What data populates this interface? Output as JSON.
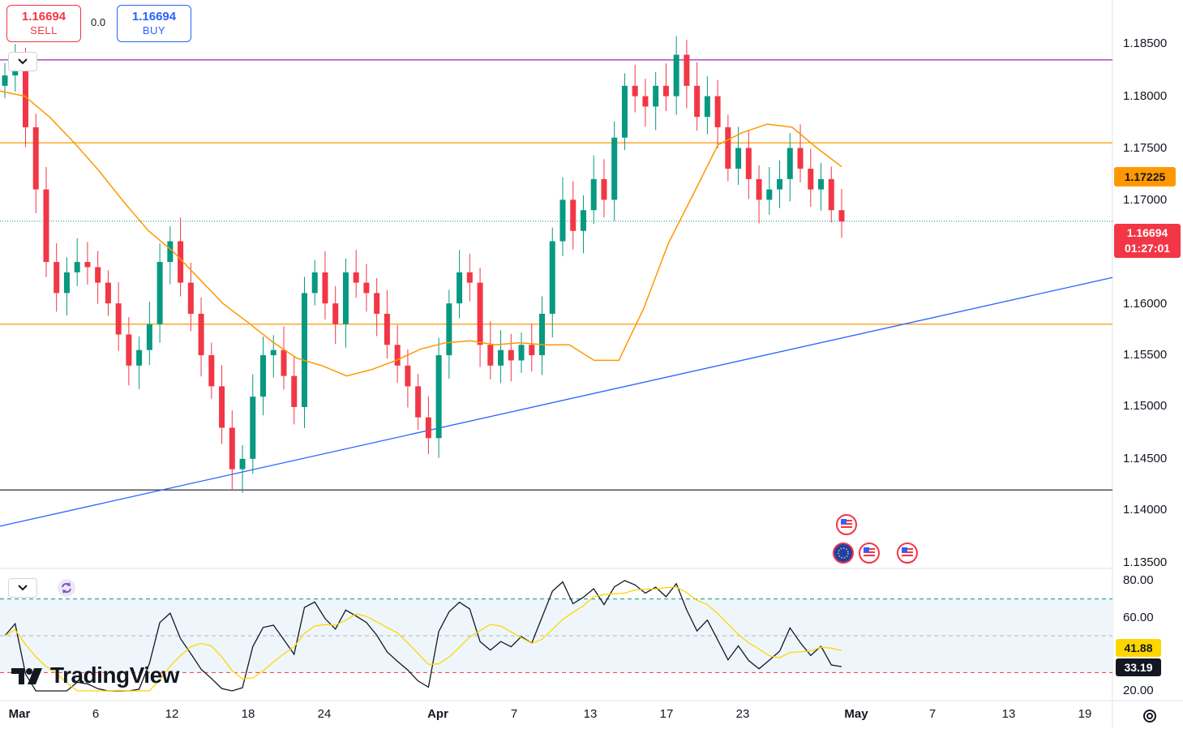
{
  "trade_panel": {
    "sell_price": "1.16694",
    "sell_label": "SELL",
    "spread": "0.0",
    "buy_price": "1.16694",
    "buy_label": "BUY"
  },
  "price_axis": {
    "ticks": [
      "1.18500",
      "1.18000",
      "1.17500",
      "1.17000",
      "1.16000",
      "1.15500",
      "1.15000",
      "1.14500",
      "1.14000",
      "1.13500"
    ],
    "ma_badge": "1.17225",
    "current_price_badge": "1.16694",
    "countdown_badge": "01:27:01"
  },
  "rsi_axis": {
    "ticks": [
      "80.00",
      "60.00",
      "20.00"
    ],
    "ma_badge": "41.88",
    "rsi_badge": "33.19"
  },
  "time_axis": {
    "ticks": [
      "Mar",
      "6",
      "12",
      "18",
      "24",
      "Apr",
      "7",
      "13",
      "17",
      "23",
      "May",
      "7",
      "13",
      "19"
    ]
  },
  "branding": {
    "logo_text": "TradingView"
  },
  "colors": {
    "up": "#089981",
    "down": "#f23645",
    "ma": "#ff9800",
    "trendline": "#2962ff",
    "resistance_top": "#9c27b0",
    "rsi_ma": "#ffd600",
    "rsi_band": "#eef6fb"
  },
  "chart_data": {
    "type": "candlestick",
    "symbol_note": "",
    "price_range": [
      1.1335,
      1.1875
    ],
    "horizontal_levels": [
      1.1825,
      1.1745,
      1.157,
      1.141
    ],
    "current_price": 1.16694,
    "ma_last": 1.17225,
    "trendline": {
      "from": {
        "x": "Feb 28",
        "y": 1.1375
      },
      "to": {
        "x": "May 19",
        "y": 1.1615
      }
    },
    "ma_path": [
      [
        1.1795,
        1.179,
        1.177,
        1.1745,
        1.1718,
        1.1688,
        1.166,
        1.164,
        1.1615,
        1.159,
        1.1572,
        1.1553,
        1.1537,
        1.153,
        1.152,
        1.1526,
        1.1535,
        1.1546,
        1.1552,
        1.1554,
        1.155,
        1.1552,
        1.155,
        1.155,
        1.1535,
        1.1535,
        1.1585,
        1.1648,
        1.1695,
        1.1743,
        1.1755,
        1.1763,
        1.176,
        1.174,
        1.1722
      ]
    ],
    "closes": [
      1.181,
      1.182,
      1.176,
      1.17,
      1.163,
      1.16,
      1.162,
      1.163,
      1.1625,
      1.161,
      1.159,
      1.156,
      1.153,
      1.1545,
      1.157,
      1.163,
      1.165,
      1.161,
      1.158,
      1.154,
      1.151,
      1.147,
      1.143,
      1.144,
      1.15,
      1.154,
      1.1545,
      1.152,
      1.149,
      1.16,
      1.162,
      1.159,
      1.157,
      1.162,
      1.161,
      1.16,
      1.158,
      1.155,
      1.153,
      1.151,
      1.148,
      1.146,
      1.154,
      1.159,
      1.162,
      1.161,
      1.155,
      1.153,
      1.1545,
      1.1535,
      1.155,
      1.154,
      1.158,
      1.165,
      1.169,
      1.166,
      1.168,
      1.171,
      1.169,
      1.175,
      1.18,
      1.179,
      1.178,
      1.18,
      1.179,
      1.183,
      1.18,
      1.177,
      1.179,
      1.176,
      1.172,
      1.174,
      1.171,
      1.169,
      1.17,
      1.171,
      1.174,
      1.172,
      1.17,
      1.171,
      1.168,
      1.1669
    ],
    "rsi": {
      "range": [
        20,
        80
      ],
      "levels": [
        70,
        50,
        30
      ],
      "last": 33.19,
      "ma_last": 41.88
    }
  }
}
